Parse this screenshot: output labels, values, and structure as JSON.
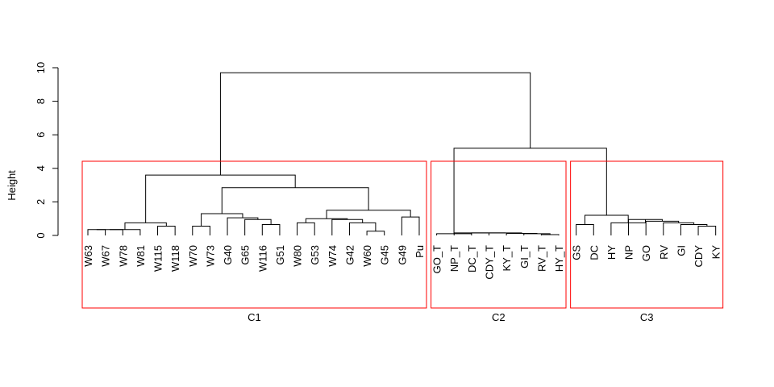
{
  "chart_data": {
    "type": "dendrogram",
    "ylabel": "Height",
    "ylim": [
      0,
      10
    ],
    "yticks": [
      0,
      2,
      4,
      6,
      8,
      10
    ],
    "leaves": [
      "W63",
      "W67",
      "W78",
      "W81",
      "W115",
      "W118",
      "W70",
      "W73",
      "G40",
      "G65",
      "W116",
      "G51",
      "W80",
      "G53",
      "W74",
      "G42",
      "W60",
      "G45",
      "G49",
      "Pu",
      "GO_T",
      "NP_T",
      "DC_T",
      "CDY_T",
      "KY_T",
      "GI_T",
      "RV_T",
      "HY_T",
      "GS",
      "DC",
      "HY",
      "NP",
      "GO",
      "RV",
      "GI",
      "CDY",
      "KY"
    ],
    "merges": [
      {
        "left": 0,
        "right": 1,
        "height": 0.35
      },
      {
        "left": "c0",
        "right": 2,
        "height": 0.35
      },
      {
        "left": "c1",
        "right": 3,
        "height": 0.35
      },
      {
        "left": 4,
        "right": 5,
        "height": 0.55
      },
      {
        "left": "c2",
        "right": "c3",
        "height": 0.75
      },
      {
        "left": 6,
        "right": 7,
        "height": 0.55
      },
      {
        "left": 10,
        "right": 11,
        "height": 0.65
      },
      {
        "left": 9,
        "right": "c6",
        "height": 0.95
      },
      {
        "left": 8,
        "right": "c7",
        "height": 1.05
      },
      {
        "left": "c5",
        "right": "c8",
        "height": 1.3
      },
      {
        "left": 12,
        "right": 13,
        "height": 0.75
      },
      {
        "left": 16,
        "right": 17,
        "height": 0.25
      },
      {
        "left": 15,
        "right": "c11",
        "height": 0.75
      },
      {
        "left": 14,
        "right": "c12",
        "height": 0.95
      },
      {
        "left": "c10",
        "right": "c13",
        "height": 1.0
      },
      {
        "left": 18,
        "right": 19,
        "height": 1.1
      },
      {
        "left": "c14",
        "right": "c15",
        "height": 1.5
      },
      {
        "left": "c9",
        "right": "c16",
        "height": 2.85
      },
      {
        "left": "c4",
        "right": "c17",
        "height": 3.6
      },
      {
        "left": 26,
        "right": 27,
        "height": 0.05
      },
      {
        "left": 25,
        "right": "c19",
        "height": 0.1
      },
      {
        "left": 24,
        "right": "c20",
        "height": 0.12
      },
      {
        "left": 23,
        "right": "c21",
        "height": 0.15
      },
      {
        "left": 22,
        "right": "c22",
        "height": 0.15
      },
      {
        "left": 21,
        "right": "c23",
        "height": 0.15
      },
      {
        "left": 20,
        "right": "c24",
        "height": 0.1
      },
      {
        "left": 35,
        "right": 36,
        "height": 0.55
      },
      {
        "left": 34,
        "right": "c26",
        "height": 0.65
      },
      {
        "left": 33,
        "right": "c27",
        "height": 0.75
      },
      {
        "left": 32,
        "right": "c28",
        "height": 0.85
      },
      {
        "left": 31,
        "right": "c29",
        "height": 0.95
      },
      {
        "left": 30,
        "right": "c30",
        "height": 0.75
      },
      {
        "left": 28,
        "right": 29,
        "height": 0.65
      },
      {
        "left": "c32",
        "right": "c31",
        "height": 1.2
      },
      {
        "left": "c25",
        "right": "c33",
        "height": 5.2
      },
      {
        "left": "c18",
        "right": "c34",
        "height": 9.7
      }
    ],
    "clusters": [
      {
        "label": "C1",
        "from": 0,
        "to": 19,
        "color": "#ff0000"
      },
      {
        "label": "C2",
        "from": 20,
        "to": 27,
        "color": "#ff0000"
      },
      {
        "label": "C3",
        "from": 28,
        "to": 36,
        "color": "#ff0000"
      }
    ]
  }
}
